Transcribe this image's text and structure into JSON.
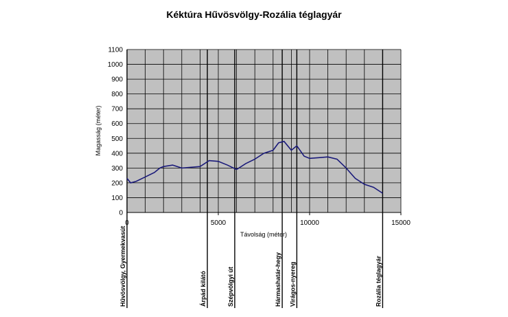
{
  "chart_data": {
    "type": "line",
    "title": "Kéktúra Hűvösvölgy-Rozália téglagyár",
    "x_label": "Távolság (méter)",
    "y_label": "Magasság (méter)",
    "xlim": [
      0,
      15000
    ],
    "xticks": [
      0,
      5000,
      10000,
      15000
    ],
    "x_grid_lines": [
      0,
      1000,
      2000,
      3000,
      4000,
      5000,
      6000,
      7000,
      8000,
      9000,
      10000,
      11000,
      12000,
      13000,
      14000,
      15000
    ],
    "ylim": [
      0,
      1100
    ],
    "yticks": [
      0,
      100,
      200,
      300,
      400,
      500,
      600,
      700,
      800,
      900,
      1000,
      1100
    ],
    "grid": true,
    "series": [
      {
        "name": "Magasság",
        "color": "#1a1a7a",
        "x": [
          0,
          200,
          500,
          1000,
          1500,
          1800,
          2000,
          2500,
          3000,
          4000,
          4500,
          5000,
          5500,
          6000,
          6500,
          7000,
          7500,
          8000,
          8300,
          8600,
          9000,
          9300,
          9700,
          10000,
          10500,
          11000,
          11500,
          12000,
          12500,
          13000,
          13500,
          14000
        ],
        "values": [
          230,
          200,
          210,
          240,
          270,
          300,
          310,
          320,
          300,
          310,
          350,
          345,
          320,
          290,
          330,
          360,
          400,
          420,
          470,
          480,
          420,
          450,
          380,
          365,
          370,
          375,
          360,
          300,
          230,
          190,
          170,
          130
        ]
      }
    ],
    "landmarks": [
      {
        "label": "Hűvösvölgy, Gyermekvasút",
        "x": 0
      },
      {
        "label": "Árpád kilátó",
        "x": 4400
      },
      {
        "label": "Szépvölgyi út",
        "x": 5900
      },
      {
        "label": "Hármashatár-hegy",
        "x": 8500
      },
      {
        "label": "Virágos-nyereg",
        "x": 9300
      },
      {
        "label": "Rozália téglagyár",
        "x": 14000
      }
    ]
  }
}
